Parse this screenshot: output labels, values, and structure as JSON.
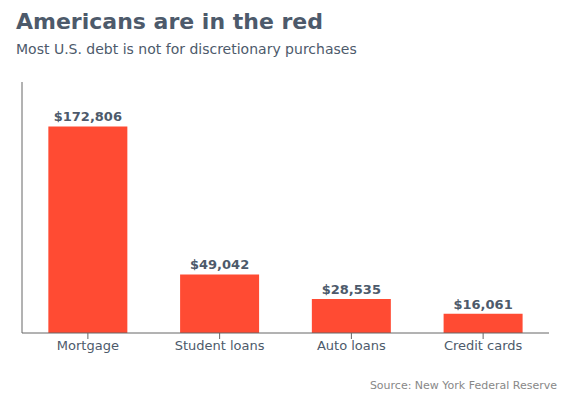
{
  "chart_data": {
    "type": "bar",
    "title": "Americans are in the red",
    "subtitle": "Most U.S. debt is not for discretionary purchases",
    "annotations": [
      "Source: New York Federal Reserve"
    ],
    "categories": [
      "Mortgage",
      "Student loans",
      "Auto loans",
      "Credit cards"
    ],
    "values": [
      172806,
      49042,
      28535,
      16061
    ],
    "value_labels": [
      "$172,806",
      "$49,042",
      "$28,535",
      "$16,061"
    ],
    "color": "#FF4B33",
    "ylim": [
      0,
      210000
    ],
    "grid": false,
    "data_labels": true,
    "tick_labels": "x"
  }
}
